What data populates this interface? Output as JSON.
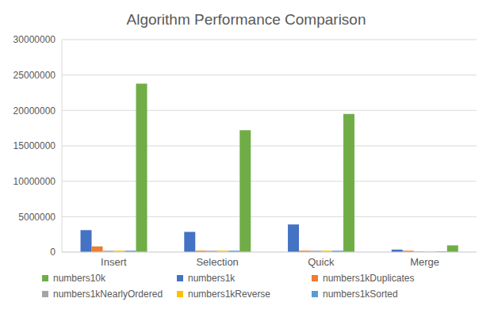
{
  "chart_data": {
    "type": "bar",
    "title": "Algorithm Performance Comparison",
    "categories": [
      "Insert",
      "Selection",
      "Quick",
      "Merge"
    ],
    "series": [
      {
        "name": "numbers1k",
        "color": "#4472c4",
        "values": [
          3100000,
          2850000,
          3900000,
          350000
        ]
      },
      {
        "name": "numbers1kDuplicates",
        "color": "#ed7d31",
        "values": [
          800000,
          200000,
          200000,
          200000
        ]
      },
      {
        "name": "numbers1kNearlyOrdered",
        "color": "#a5a5a5",
        "values": [
          200000,
          200000,
          200000,
          100000
        ]
      },
      {
        "name": "numbers1kReverse",
        "color": "#ffc000",
        "values": [
          200000,
          200000,
          200000,
          100000
        ]
      },
      {
        "name": "numbers1kSorted",
        "color": "#5b9bd5",
        "values": [
          200000,
          200000,
          200000,
          100000
        ]
      },
      {
        "name": "numbers10k",
        "color": "#70ad47",
        "values": [
          23800000,
          17200000,
          19500000,
          950000
        ]
      }
    ],
    "ylim": [
      0,
      30000000
    ],
    "yticks": [
      0,
      5000000,
      10000000,
      15000000,
      20000000,
      25000000,
      30000000
    ],
    "grid": true,
    "legend": "bottom"
  }
}
